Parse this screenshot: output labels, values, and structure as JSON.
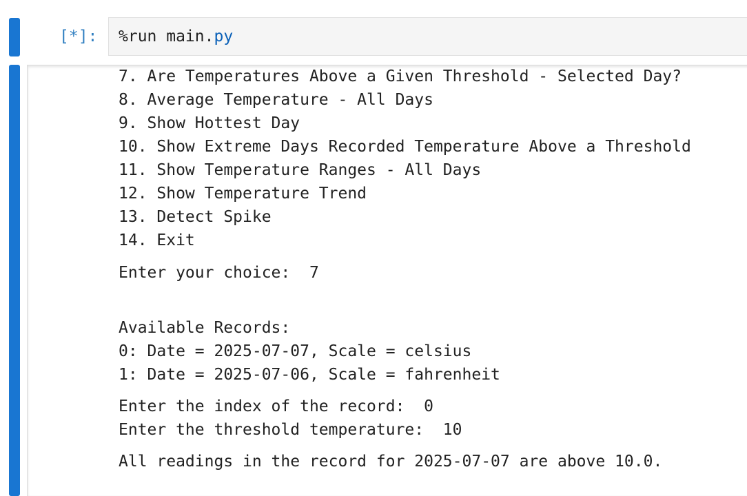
{
  "input_cell": {
    "prompt": "[*]:",
    "code_prefix": "%run main.",
    "code_ext": "py"
  },
  "output": {
    "menu_items": [
      "7. Are Temperatures Above a Given Threshold - Selected Day?",
      "8. Average Temperature - All Days",
      "9. Show Hottest Day",
      "10. Show Extreme Days Recorded Temperature Above a Threshold",
      "11. Show Temperature Ranges - All Days",
      "12. Show Temperature Trend",
      "13. Detect Spike",
      "14. Exit"
    ],
    "choice_prompt": "Enter your choice:  7",
    "records_header": "Available Records:",
    "records": [
      "0: Date = 2025-07-07, Scale = celsius",
      "1: Date = 2025-07-06, Scale = fahrenheit"
    ],
    "index_prompt": "Enter the index of the record:  0",
    "threshold_prompt": "Enter the threshold temperature:  10",
    "result": "All readings in the record for 2025-07-07 are above 10.0."
  },
  "colors": {
    "cell_bar": "#1976d2",
    "prompt": "#307fc1",
    "input_bg": "#f5f5f5"
  }
}
